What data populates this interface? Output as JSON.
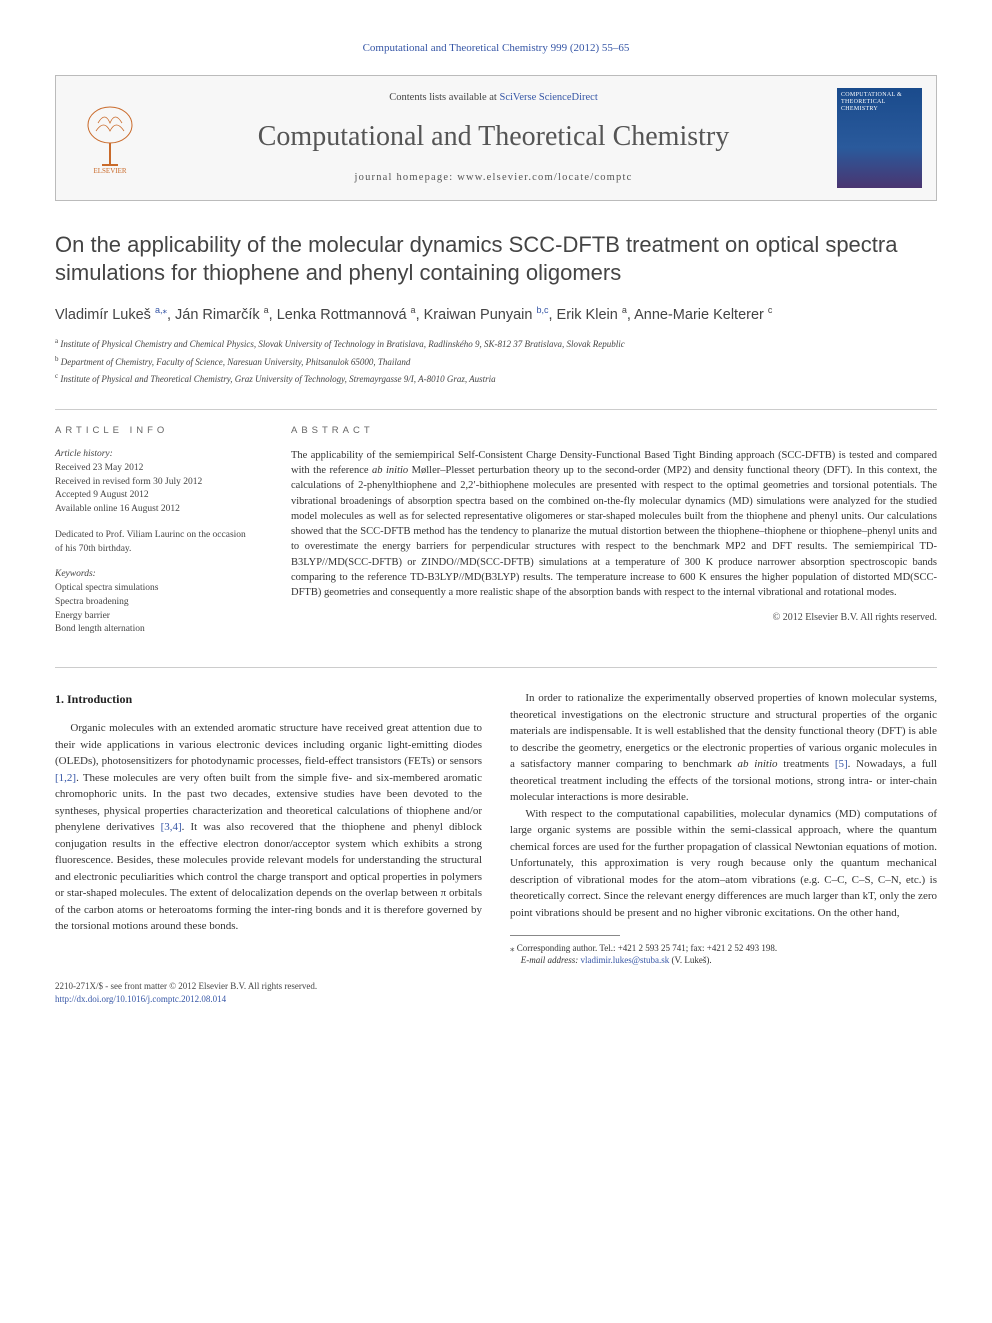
{
  "topbar": {
    "text": "Computational and Theoretical Chemistry 999 (2012) 55–65"
  },
  "masthead": {
    "sd_prefix": "Contents lists available at ",
    "sd_link": "SciVerse ScienceDirect",
    "journal": "Computational and Theoretical Chemistry",
    "homepage_label": "journal homepage: ",
    "homepage_url": "www.elsevier.com/locate/comptc",
    "cover_text": "COMPUTATIONAL & THEORETICAL CHEMISTRY"
  },
  "title": "On the applicability of the molecular dynamics SCC-DFTB treatment on optical spectra simulations for thiophene and phenyl containing oligomers",
  "authors_line": [
    {
      "name": "Vladimír Lukeš",
      "sup": "a,",
      "link": true,
      "star": true
    },
    {
      "name": "Ján Rimarčík",
      "sup": "a"
    },
    {
      "name": "Lenka Rottmannová",
      "sup": "a"
    },
    {
      "name": "Kraiwan Punyain",
      "sup": "b,c",
      "link_sup": true
    },
    {
      "name": "Erik Klein",
      "sup": "a"
    },
    {
      "name": "Anne-Marie Kelterer",
      "sup": "c"
    }
  ],
  "affiliations": [
    {
      "sup": "a",
      "text": "Institute of Physical Chemistry and Chemical Physics, Slovak University of Technology in Bratislava, Radlinského 9, SK-812 37 Bratislava, Slovak Republic"
    },
    {
      "sup": "b",
      "text": "Department of Chemistry, Faculty of Science, Naresuan University, Phitsanulok 65000, Thailand"
    },
    {
      "sup": "c",
      "text": "Institute of Physical and Theoretical Chemistry, Graz University of Technology, Stremayrgasse 9/I, A-8010 Graz, Austria"
    }
  ],
  "article_info": {
    "head": "article info",
    "history_label": "Article history:",
    "history": [
      "Received 23 May 2012",
      "Received in revised form 30 July 2012",
      "Accepted 9 August 2012",
      "Available online 16 August 2012"
    ],
    "dedication": "Dedicated to Prof. Viliam Laurinc on the occasion of his 70th birthday.",
    "keywords_label": "Keywords:",
    "keywords": [
      "Optical spectra simulations",
      "Spectra broadening",
      "Energy barrier",
      "Bond length alternation"
    ]
  },
  "abstract": {
    "head": "abstract",
    "text_html": "The applicability of the semiempirical Self-Consistent Charge Density-Functional Based Tight Binding approach (SCC-DFTB) is tested and compared with the reference <em>ab initio</em> Møller–Plesset perturbation theory up to the second-order (MP2) and density functional theory (DFT). In this context, the calculations of 2-phenylthiophene and 2,2′-bithiophene molecules are presented with respect to the optimal geometries and torsional potentials. The vibrational broadenings of absorption spectra based on the combined on-the-fly molecular dynamics (MD) simulations were analyzed for the studied model molecules as well as for selected representative oligomeres or star-shaped molecules built from the thiophene and phenyl units. Our calculations showed that the SCC-DFTB method has the tendency to planarize the mutual distortion between the thiophene–thiophene or thiophene–phenyl units and to overestimate the energy barriers for perpendicular structures with respect to the benchmark MP2 and DFT results. The semiempirical TD-B3LYP//MD(SCC-DFTB) or ZINDO//MD(SCC-DFTB) simulations at a temperature of 300 K produce narrower absorption spectroscopic bands comparing to the reference TD-B3LYP//MD(B3LYP) results. The temperature increase to 600 K ensures the higher population of distorted MD(SCC-DFTB) geometries and consequently a more realistic shape of the absorption bands with respect to the internal vibrational and rotational modes.",
    "copyright": "© 2012 Elsevier B.V. All rights reserved."
  },
  "section1": {
    "heading": "1. Introduction",
    "p1": "Organic molecules with an extended aromatic structure have received great attention due to their wide applications in various electronic devices including organic light-emitting diodes (OLEDs), photosensitizers for photodynamic processes, field-effect transistors (FETs) or sensors ",
    "ref1": "[1,2]",
    "p1b": ". These molecules are very often built from the simple five- and six-membered aromatic chromophoric units. In the past two decades, extensive studies have been devoted to the syntheses, physical properties characterization and theoretical calculations of thiophene and/or phenylene derivatives ",
    "ref2": "[3,4]",
    "p1c": ". It was also recovered that the thiophene and phenyl diblock conjugation results in the effective electron donor/acceptor system which exhibits a strong fluorescence. Besides, these molecules provide relevant models for understanding the structural and electronic peculiarities which control the charge transport and optical properties in polymers or star-shaped molecules. The extent of delocalization depends on the overlap between π orbitals of the carbon atoms or heteroatoms forming the inter-ring bonds and it is therefore governed by the torsional motions around these bonds.",
    "p2a": "In order to rationalize the experimentally observed properties of known molecular systems, theoretical investigations on the electronic structure and structural properties of the organic materials are indispensable. It is well established that the density functional theory (DFT) is able to describe the geometry, energetics or the electronic properties of various organic molecules in a satisfactory manner comparing to benchmark ",
    "p2_em": "ab initio",
    "p2b": " treatments ",
    "ref3": "[5]",
    "p2c": ". Nowadays, a full theoretical treatment including the effects of the torsional motions, strong intra- or inter-chain molecular interactions is more desirable.",
    "p3": "With respect to the computational capabilities, molecular dynamics (MD) computations of large organic systems are possible within the semi-classical approach, where the quantum chemical forces are used for the further propagation of classical Newtonian equations of motion. Unfortunately, this approximation is very rough because only the quantum mechanical description of vibrational modes for the atom–atom vibrations (e.g. C–C, C–S, C–N, etc.) is theoretically correct. Since the relevant energy differences are much larger than kT, only the zero point vibrations should be present and no higher vibronic excitations. On the other hand,"
  },
  "footnote": {
    "corr": "Corresponding author. Tel.: +421 2 593 25 741; fax: +421 2 52 493 198.",
    "email_label": "E-mail address: ",
    "email": "vladimir.lukes@stuba.sk",
    "email_who": " (V. Lukeš)."
  },
  "bottom": {
    "left1": "2210-271X/$ - see front matter © 2012 Elsevier B.V. All rights reserved.",
    "doi": "http://dx.doi.org/10.1016/j.comptc.2012.08.014"
  },
  "colors": {
    "link": "#3656a6",
    "rule": "#cccccc",
    "cover_grad_top": "#1a4b8c",
    "cover_grad_bot": "#4a3570"
  }
}
